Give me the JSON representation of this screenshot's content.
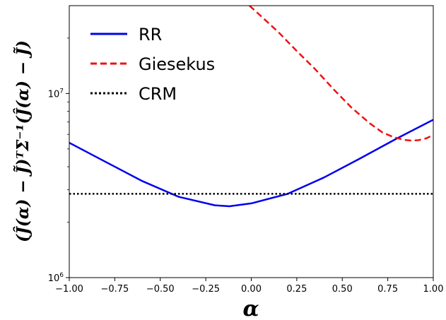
{
  "chart_data": {
    "type": "line",
    "xlabel": "α",
    "ylabel": "(Ĵ(α) − J̃)ᵀΣ⁻¹(Ĵ(α) − J̃)",
    "xlim": [
      -1.0,
      1.0
    ],
    "ylim": [
      1000000,
      30000000
    ],
    "yscale": "log",
    "grid": false,
    "legend_position": "top-left",
    "x_ticks": [
      -1.0,
      -0.75,
      -0.5,
      -0.25,
      0.0,
      0.25,
      0.5,
      0.75,
      1.0
    ],
    "x_tick_labels": [
      "−1.00",
      "−0.75",
      "−0.50",
      "−0.25",
      "0.00",
      "0.25",
      "0.50",
      "0.75",
      "1.00"
    ],
    "y_major_ticks": [
      {
        "value": 1000000,
        "base": "10",
        "exp": "6"
      },
      {
        "value": 10000000,
        "base": "10",
        "exp": "7"
      }
    ],
    "y_minor_ticks": [
      2000000,
      3000000,
      4000000,
      5000000,
      6000000,
      7000000,
      8000000,
      9000000,
      20000000
    ],
    "series": [
      {
        "name": "RR",
        "color": "#0000ee",
        "style": "solid",
        "x": [
          -1.0,
          -0.8,
          -0.6,
          -0.4,
          -0.2,
          -0.12,
          0.0,
          0.2,
          0.4,
          0.6,
          0.8,
          1.0
        ],
        "y": [
          5400000,
          4250000,
          3350000,
          2750000,
          2470000,
          2440000,
          2530000,
          2850000,
          3500000,
          4450000,
          5700000,
          7200000
        ]
      },
      {
        "name": "Giesekus",
        "color": "#ee1111",
        "style": "dashed",
        "x": [
          -0.01,
          0.05,
          0.15,
          0.25,
          0.35,
          0.45,
          0.55,
          0.65,
          0.72,
          0.78,
          0.84,
          0.88,
          0.92,
          0.96,
          1.0
        ],
        "y": [
          30000000,
          26500000,
          21500000,
          17000000,
          13600000,
          10600000,
          8400000,
          6900000,
          6150000,
          5800000,
          5600000,
          5550000,
          5580000,
          5700000,
          5950000
        ]
      },
      {
        "name": "CRM",
        "color": "#000000",
        "style": "dotted",
        "x": [
          -1.0,
          1.0
        ],
        "y": [
          2850000,
          2850000
        ]
      }
    ]
  }
}
